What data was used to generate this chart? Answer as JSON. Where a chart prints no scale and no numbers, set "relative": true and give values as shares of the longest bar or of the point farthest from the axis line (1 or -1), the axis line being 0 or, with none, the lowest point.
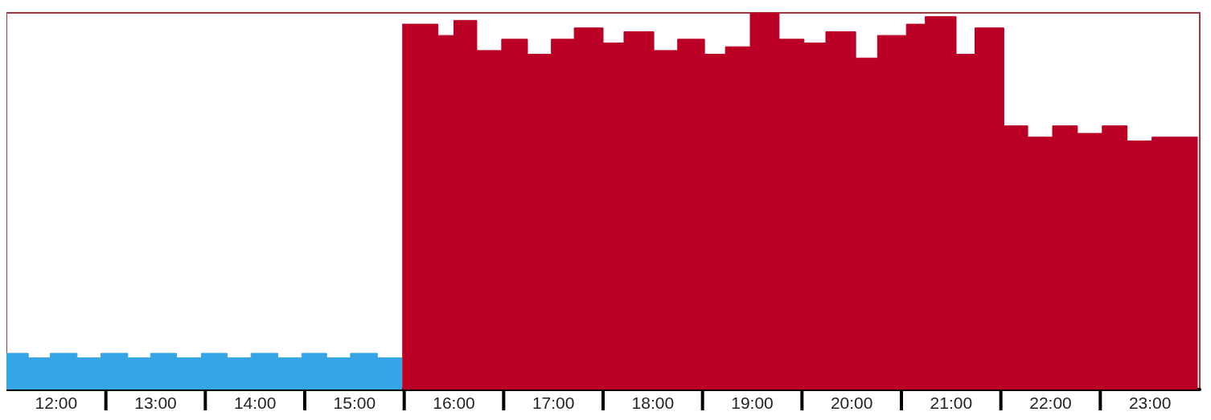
{
  "chart_data": {
    "type": "area",
    "relative": true,
    "series": [
      {
        "color": "#35a5e6",
        "x": [
          11.5,
          11.72,
          11.72,
          11.94,
          11.94,
          12.21,
          12.21,
          12.45,
          12.45,
          12.72,
          12.72,
          12.95,
          12.95,
          13.21,
          13.21,
          13.46,
          13.46,
          13.72,
          13.72,
          13.96,
          13.96,
          14.23,
          14.23,
          14.47,
          14.47,
          14.72,
          14.72,
          14.96,
          14.96,
          15.23,
          15.23,
          15.48
        ],
        "values": [
          0.096,
          0.096,
          0.084,
          0.084,
          0.096,
          0.096,
          0.084,
          0.084,
          0.096,
          0.096,
          0.084,
          0.084,
          0.096,
          0.096,
          0.084,
          0.084,
          0.096,
          0.096,
          0.084,
          0.084,
          0.096,
          0.096,
          0.084,
          0.084,
          0.096,
          0.096,
          0.084,
          0.084,
          0.096,
          0.096,
          0.084,
          0.084
        ]
      },
      {
        "color": "#bb0026",
        "x": [
          15.48,
          15.84,
          15.84,
          16.0,
          16.0,
          16.23,
          16.23,
          16.48,
          16.48,
          16.74,
          16.74,
          16.98,
          16.98,
          17.21,
          17.21,
          17.5,
          17.5,
          17.71,
          17.71,
          18.01,
          18.01,
          18.25,
          18.25,
          18.52,
          18.52,
          18.73,
          18.73,
          18.98,
          18.98,
          19.27,
          19.27,
          19.52,
          19.52,
          19.74,
          19.74,
          20.04,
          20.04,
          20.26,
          20.26,
          20.55,
          20.55,
          20.74,
          20.74,
          21.05,
          21.05,
          21.24,
          21.24,
          21.53,
          21.53,
          21.77,
          21.77,
          22.02,
          22.02,
          22.27,
          22.27,
          22.52,
          22.52,
          22.77,
          22.77,
          23.02,
          23.02,
          23.48
        ],
        "values": [
          0.97,
          0.97,
          0.94,
          0.94,
          0.98,
          0.98,
          0.9,
          0.9,
          0.93,
          0.93,
          0.89,
          0.89,
          0.93,
          0.93,
          0.96,
          0.96,
          0.92,
          0.92,
          0.95,
          0.95,
          0.9,
          0.9,
          0.93,
          0.93,
          0.89,
          0.89,
          0.91,
          0.91,
          1.0,
          1.0,
          0.93,
          0.93,
          0.92,
          0.92,
          0.95,
          0.95,
          0.88,
          0.88,
          0.94,
          0.94,
          0.97,
          0.97,
          0.99,
          0.99,
          0.89,
          0.89,
          0.96,
          0.96,
          0.7,
          0.7,
          0.67,
          0.67,
          0.7,
          0.7,
          0.68,
          0.68,
          0.7,
          0.7,
          0.66,
          0.66,
          0.67,
          0.67
        ]
      }
    ],
    "xlim": [
      11.5,
      23.5
    ],
    "xticks": [
      {
        "value": 12,
        "label": "12:00"
      },
      {
        "value": 13,
        "label": "13:00"
      },
      {
        "value": 14,
        "label": "14:00"
      },
      {
        "value": 15,
        "label": "15:00"
      },
      {
        "value": 16,
        "label": "16:00"
      },
      {
        "value": 17,
        "label": "17:00"
      },
      {
        "value": 18,
        "label": "18:00"
      },
      {
        "value": 19,
        "label": "19:00"
      },
      {
        "value": 20,
        "label": "20:00"
      },
      {
        "value": 21,
        "label": "21:00"
      },
      {
        "value": 22,
        "label": "22:00"
      },
      {
        "value": 23,
        "label": "23:00"
      }
    ]
  }
}
